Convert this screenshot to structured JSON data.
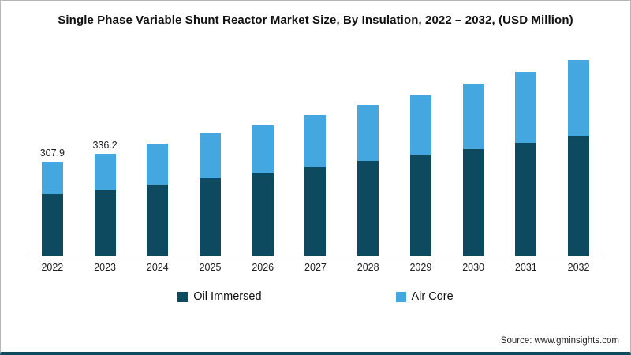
{
  "chart_data": {
    "type": "bar",
    "stacked": true,
    "title": "Single Phase Variable Shunt Reactor Market Size, By Insulation, 2022 – 2032, (USD Million)",
    "categories": [
      "2022",
      "2023",
      "2024",
      "2025",
      "2026",
      "2027",
      "2028",
      "2029",
      "2030",
      "2031",
      "2032"
    ],
    "series": [
      {
        "name": "Oil Immersed",
        "color": "#0d4a5f",
        "values": [
          203,
          216,
          234,
          254,
          272,
          291,
          311,
          332,
          351,
          371,
          392
        ]
      },
      {
        "name": "Air Core",
        "color": "#45a7e0",
        "values": [
          104.9,
          120.2,
          135,
          148,
          158,
          171,
          185,
          196,
          215,
          234,
          252
        ]
      }
    ],
    "total_labels": [
      "307.9",
      "336.2",
      null,
      null,
      null,
      null,
      null,
      null,
      null,
      null,
      null
    ],
    "xlabel": "",
    "ylabel": "",
    "ylim": [
      0,
      700
    ],
    "grid": false,
    "legend_position": "bottom"
  },
  "source": {
    "label": "Source: www.gminsights.com"
  }
}
